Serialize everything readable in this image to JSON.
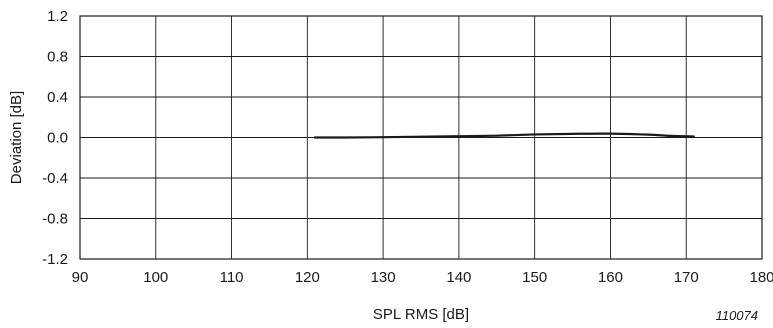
{
  "chart_data": {
    "type": "line",
    "xlabel": "SPL RMS [dB]",
    "ylabel": "Deviation [dB]",
    "xlim": [
      90,
      180
    ],
    "ylim": [
      -1.2,
      1.2
    ],
    "x_ticks": [
      "90",
      "100",
      "110",
      "120",
      "130",
      "140",
      "150",
      "160",
      "170",
      "180"
    ],
    "y_ticks": [
      "1.2",
      "0.8",
      "0.4",
      "0.0",
      "-0.4",
      "-0.8",
      "-1.2"
    ],
    "grid": true,
    "legend": "none",
    "annotation": "110074",
    "series": [
      {
        "x": [
          121,
          125,
          130,
          135,
          140,
          145,
          150,
          155,
          160,
          165,
          168,
          171
        ],
        "y": [
          0.0,
          0.0,
          0.003,
          0.008,
          0.012,
          0.018,
          0.03,
          0.036,
          0.038,
          0.028,
          0.016,
          0.01
        ]
      }
    ],
    "color": "#1a1a1a"
  }
}
